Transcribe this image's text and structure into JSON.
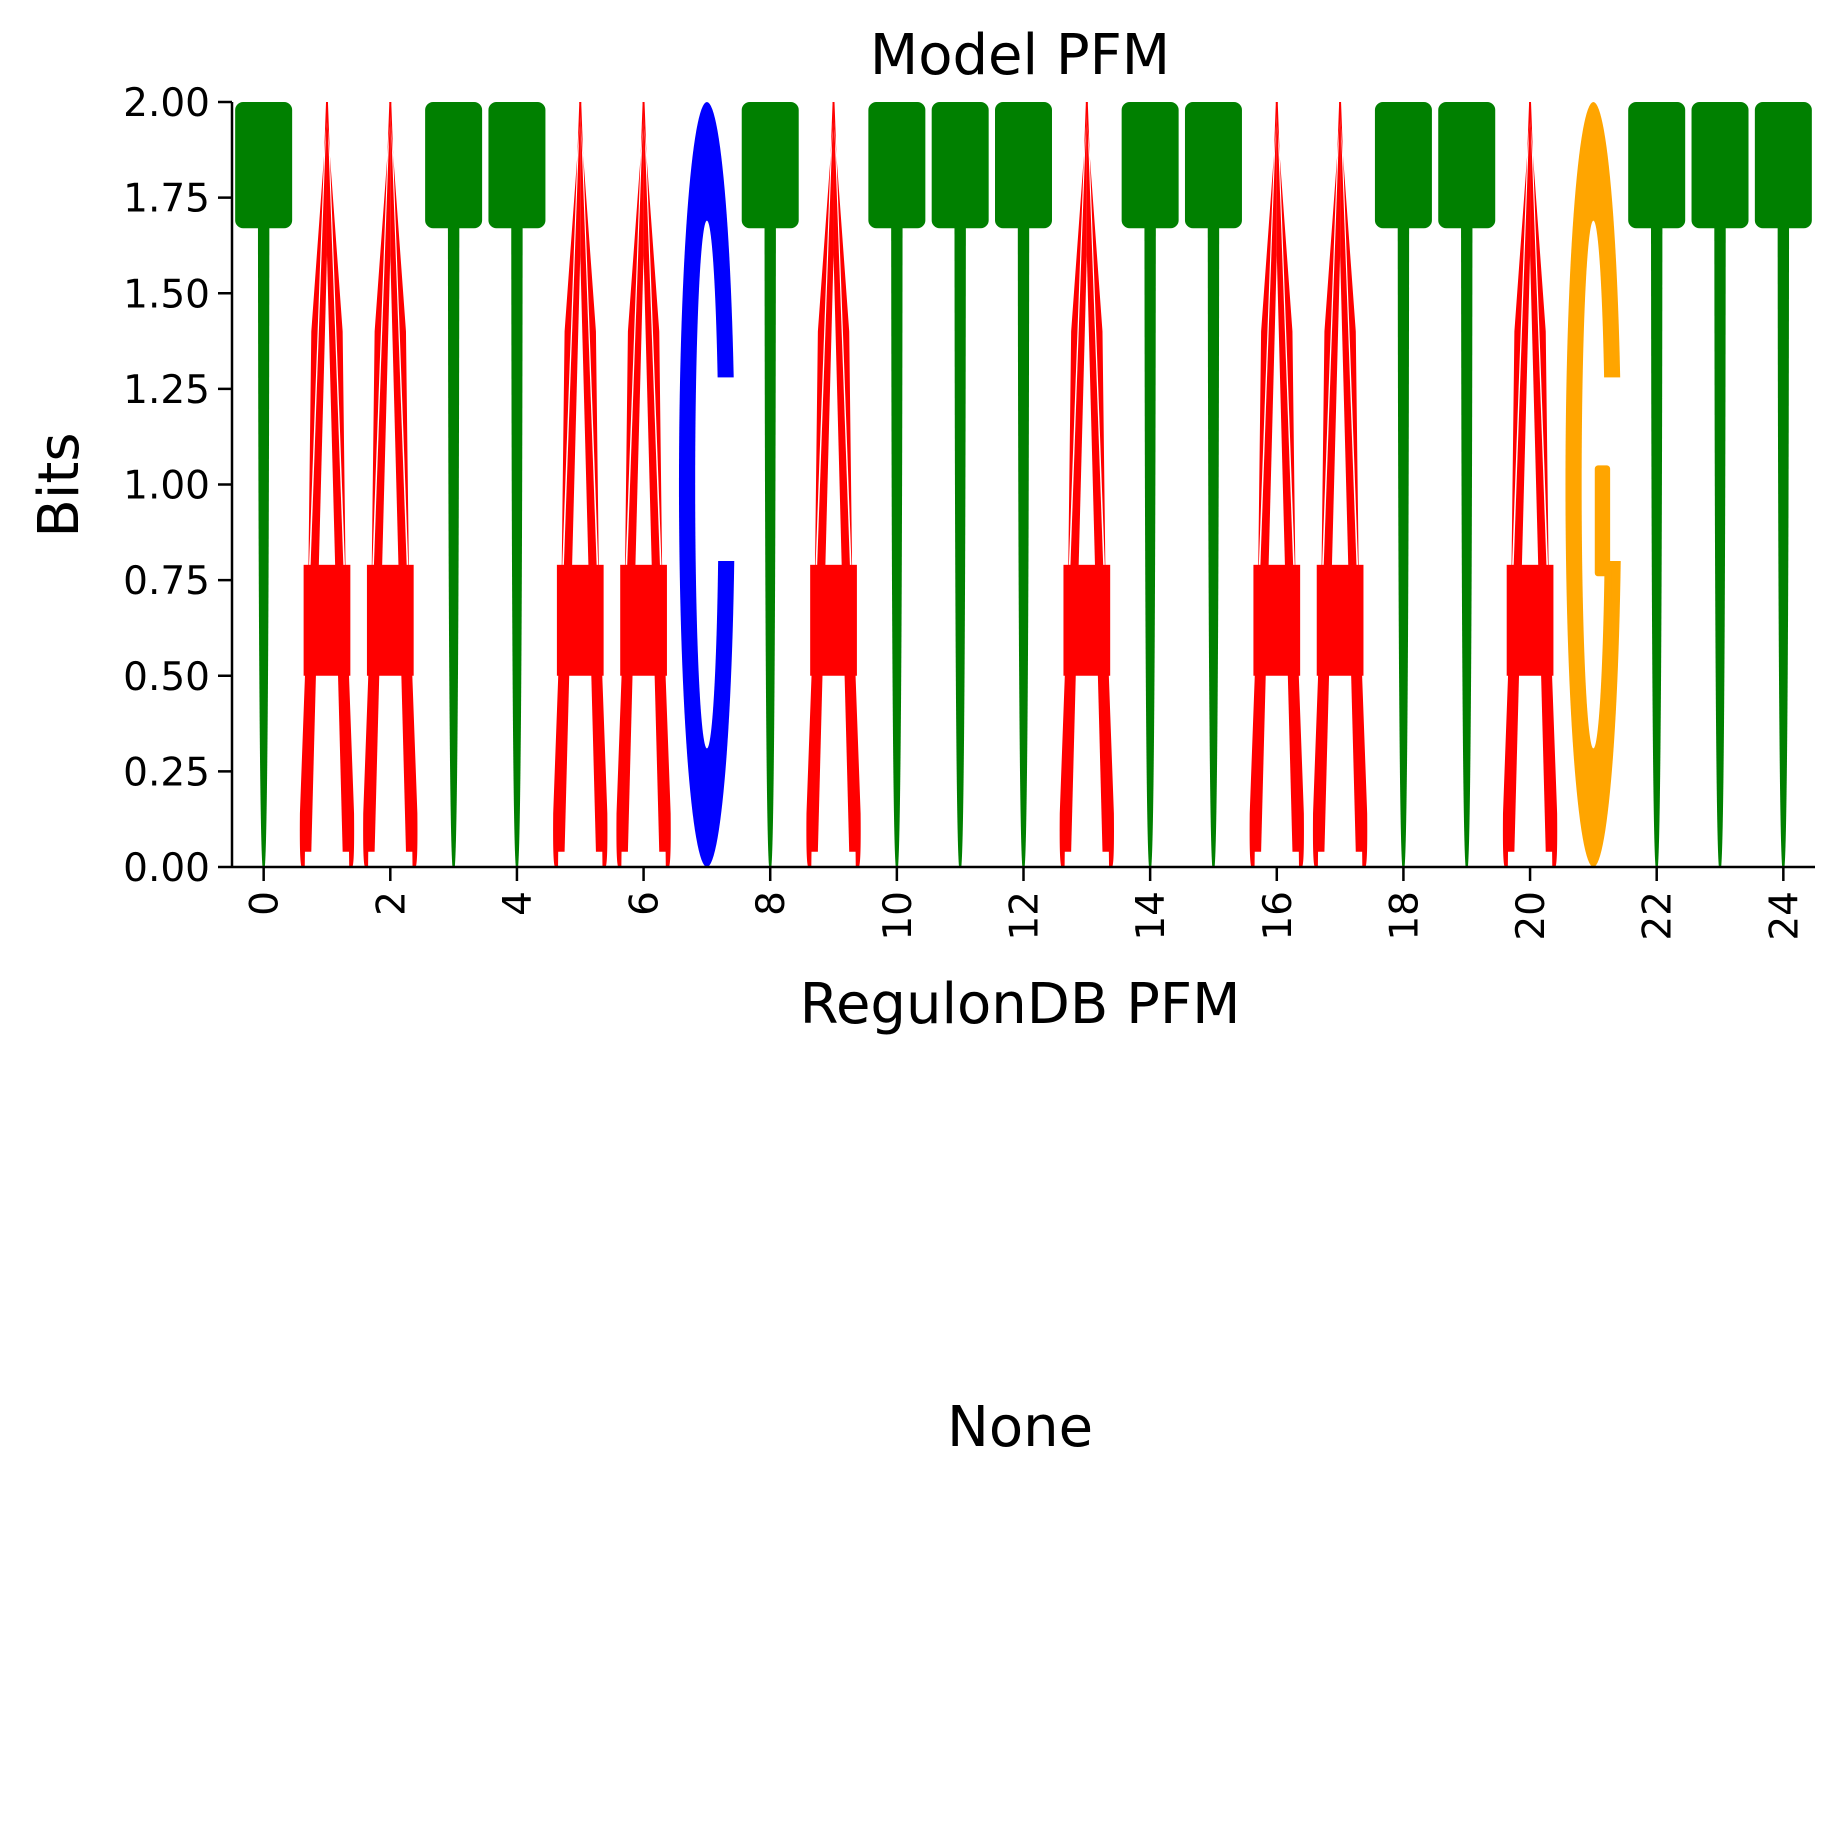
{
  "chart_data": [
    {
      "type": "sequence-logo",
      "title": "Model PFM",
      "xlabel": "RegulonDB PFM",
      "ylabel": "Bits",
      "ylim": [
        0,
        2
      ],
      "xlim": [
        -0.5,
        24.5
      ],
      "y_ticks": [
        "0.00",
        "0.25",
        "0.50",
        "0.75",
        "1.00",
        "1.25",
        "1.50",
        "1.75",
        "2.00"
      ],
      "x_ticks": [
        "0",
        "2",
        "4",
        "6",
        "8",
        "10",
        "12",
        "14",
        "16",
        "18",
        "20",
        "22",
        "24"
      ],
      "x_tick_rotation": "vertical",
      "grid": false,
      "positions": [
        {
          "x": 0,
          "letter": "T",
          "bits": 2.0
        },
        {
          "x": 1,
          "letter": "A",
          "bits": 2.0
        },
        {
          "x": 2,
          "letter": "A",
          "bits": 2.0
        },
        {
          "x": 3,
          "letter": "T",
          "bits": 2.0
        },
        {
          "x": 4,
          "letter": "T",
          "bits": 2.0
        },
        {
          "x": 5,
          "letter": "A",
          "bits": 2.0
        },
        {
          "x": 6,
          "letter": "A",
          "bits": 2.0
        },
        {
          "x": 7,
          "letter": "C",
          "bits": 2.0
        },
        {
          "x": 8,
          "letter": "T",
          "bits": 2.0
        },
        {
          "x": 9,
          "letter": "A",
          "bits": 2.0
        },
        {
          "x": 10,
          "letter": "T",
          "bits": 2.0
        },
        {
          "x": 11,
          "letter": "T",
          "bits": 2.0
        },
        {
          "x": 12,
          "letter": "T",
          "bits": 2.0
        },
        {
          "x": 13,
          "letter": "A",
          "bits": 2.0
        },
        {
          "x": 14,
          "letter": "T",
          "bits": 2.0
        },
        {
          "x": 15,
          "letter": "T",
          "bits": 2.0
        },
        {
          "x": 16,
          "letter": "A",
          "bits": 2.0
        },
        {
          "x": 17,
          "letter": "A",
          "bits": 2.0
        },
        {
          "x": 18,
          "letter": "T",
          "bits": 2.0
        },
        {
          "x": 19,
          "letter": "T",
          "bits": 2.0
        },
        {
          "x": 20,
          "letter": "A",
          "bits": 2.0
        },
        {
          "x": 21,
          "letter": "G",
          "bits": 2.0
        },
        {
          "x": 22,
          "letter": "T",
          "bits": 2.0
        },
        {
          "x": 23,
          "letter": "T",
          "bits": 2.0
        },
        {
          "x": 24,
          "letter": "T",
          "bits": 2.0
        }
      ],
      "colors": {
        "A": "#ff0000",
        "C": "#0000ff",
        "G": "#ffa500",
        "T": "#008000"
      }
    },
    {
      "type": "empty",
      "title": "None"
    }
  ]
}
